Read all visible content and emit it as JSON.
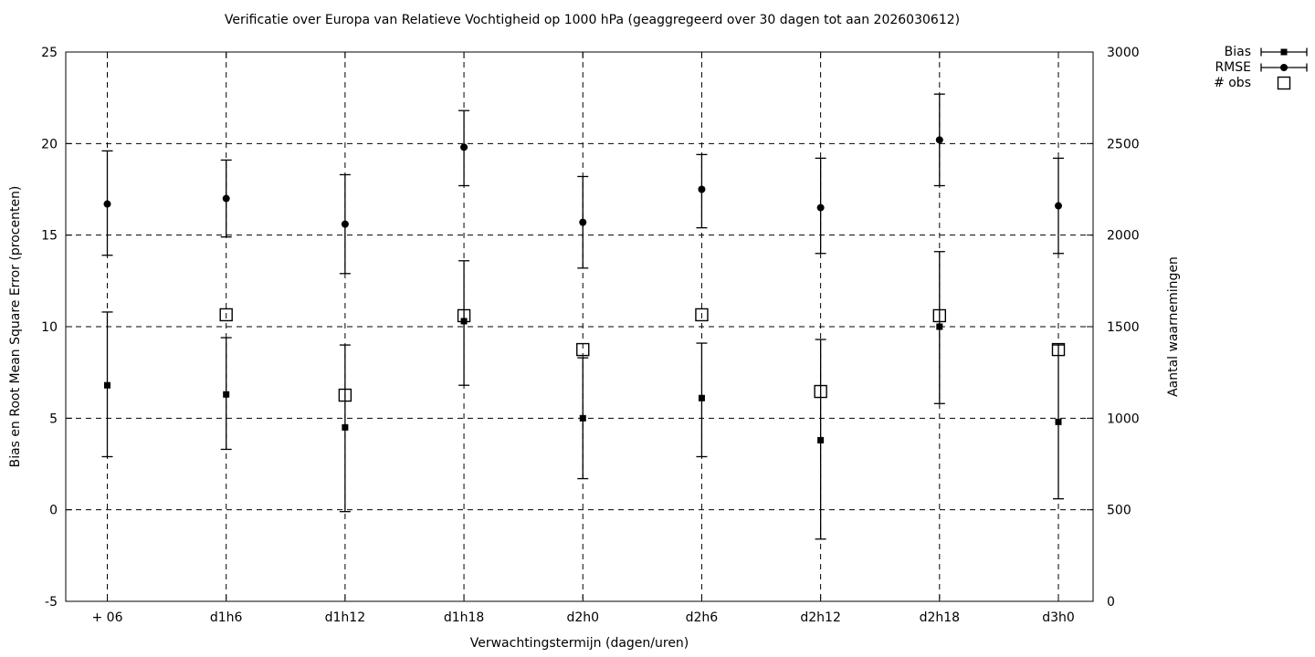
{
  "colors": {
    "foreground": "#000000",
    "background": "#ffffff"
  },
  "chart_data": {
    "type": "scatter",
    "title": "Verificatie over Europa van Relatieve Vochtigheid op 1000 hPa (geaggregeerd over 30 dagen tot aan 2026030612)",
    "xlabel": "Verwachtingstermijn (dagen/uren)",
    "ylabel_left": "Bias en Root Mean Square Error (procenten)",
    "ylabel_right": "Aantal waarnemingen",
    "categories": [
      "+ 06",
      "d1h6",
      "d1h12",
      "d1h18",
      "d2h0",
      "d2h6",
      "d2h12",
      "d2h18",
      "d3h0"
    ],
    "y_left": {
      "min": -5,
      "max": 25,
      "ticks": [
        -5,
        0,
        5,
        10,
        15,
        20,
        25
      ]
    },
    "y_right": {
      "min": 0,
      "max": 3000,
      "ticks": [
        0,
        500,
        1000,
        1500,
        2000,
        2500,
        3000
      ]
    },
    "grid": true,
    "legend": {
      "position": "top-right-outside",
      "entries": [
        "Bias",
        "RMSE",
        "# obs"
      ]
    },
    "series": [
      {
        "name": "# obs",
        "marker": "open-square",
        "axis": "right",
        "values": [
          null,
          1565,
          1126,
          1560,
          1375,
          1565,
          1146,
          1560,
          1375
        ]
      },
      {
        "name": "RMSE",
        "marker": "filled-circle",
        "axis": "left",
        "values": [
          16.7,
          17.0,
          15.6,
          19.8,
          15.7,
          17.5,
          16.5,
          20.2,
          16.6
        ],
        "err_low": [
          13.9,
          14.9,
          12.9,
          17.7,
          13.2,
          15.4,
          14.0,
          17.7,
          14.0
        ],
        "err_high": [
          19.6,
          19.1,
          18.3,
          21.8,
          18.2,
          19.4,
          19.2,
          22.7,
          19.2
        ]
      },
      {
        "name": "Bias",
        "marker": "filled-square",
        "axis": "left",
        "values": [
          6.8,
          6.3,
          4.5,
          10.3,
          5.0,
          6.1,
          3.8,
          10.0,
          4.8
        ],
        "err_low": [
          2.9,
          3.3,
          -0.1,
          6.8,
          1.7,
          2.9,
          -1.6,
          5.8,
          0.6
        ],
        "err_high": [
          10.8,
          9.4,
          9.0,
          13.6,
          8.3,
          9.1,
          9.3,
          14.1,
          9.0
        ]
      }
    ]
  }
}
